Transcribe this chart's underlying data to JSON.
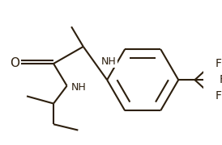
{
  "background_color": "#ffffff",
  "line_color": "#2d1f0e",
  "text_color": "#2d1f0e",
  "figsize": [
    2.74,
    1.8
  ],
  "dpi": 100,
  "xlim": [
    0,
    274
  ],
  "ylim": [
    0,
    180
  ]
}
